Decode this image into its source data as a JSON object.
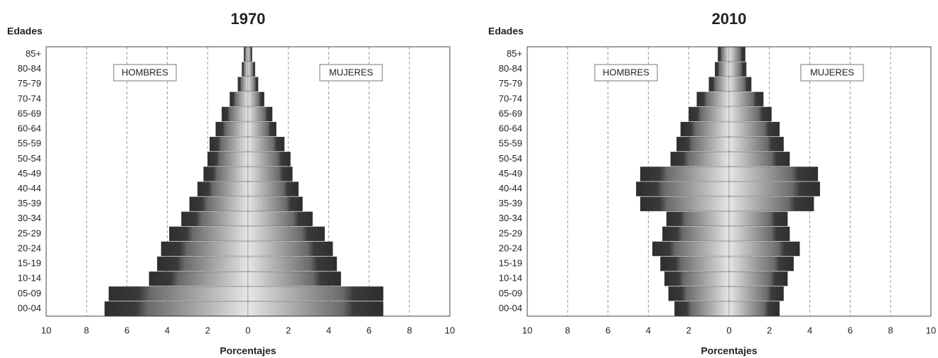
{
  "chart_data": [
    {
      "type": "pyramid",
      "title": "1970",
      "y_label": "Edades",
      "x_label": "Porcentajes",
      "categories": [
        "00-04",
        "05-09",
        "10-14",
        "15-19",
        "20-24",
        "25-29",
        "30-34",
        "35-39",
        "40-44",
        "45-49",
        "50-54",
        "55-59",
        "60-64",
        "65-69",
        "70-74",
        "75-79",
        "80-84",
        "85+"
      ],
      "series": [
        {
          "name": "HOMBRES",
          "color": "#333333",
          "values": [
            -7.1,
            -6.9,
            -4.9,
            -4.5,
            -4.3,
            -3.9,
            -3.3,
            -2.9,
            -2.5,
            -2.2,
            -2.0,
            -1.9,
            -1.6,
            -1.3,
            -0.9,
            -0.5,
            -0.3,
            -0.2
          ]
        },
        {
          "name": "MUJERES",
          "color": "#333333",
          "values": [
            6.7,
            6.7,
            4.6,
            4.4,
            4.2,
            3.8,
            3.2,
            2.7,
            2.5,
            2.2,
            2.1,
            1.8,
            1.4,
            1.2,
            0.8,
            0.5,
            0.35,
            0.2
          ]
        }
      ],
      "xlim": [
        -10,
        10
      ],
      "xticks": [
        {
          "value": -10,
          "label": "10"
        },
        {
          "value": -8,
          "label": "8"
        },
        {
          "value": -6,
          "label": "6"
        },
        {
          "value": -4,
          "label": "4"
        },
        {
          "value": -2,
          "label": "2"
        },
        0,
        2,
        4,
        6,
        8,
        10
      ],
      "grid": true
    },
    {
      "type": "pyramid",
      "title": "2010",
      "y_label": "Edades",
      "x_label": "Porcentajes",
      "categories": [
        "00-04",
        "05-09",
        "10-14",
        "15-19",
        "20-24",
        "25-29",
        "30-34",
        "35-39",
        "40-44",
        "45-49",
        "50-54",
        "55-59",
        "60-64",
        "65-69",
        "70-74",
        "75-79",
        "80-84",
        "85+"
      ],
      "series": [
        {
          "name": "HOMBRES",
          "color": "#333333",
          "values": [
            -2.7,
            -3.0,
            -3.2,
            -3.4,
            -3.8,
            -3.3,
            -3.1,
            -4.4,
            -4.6,
            -4.4,
            -2.9,
            -2.6,
            -2.4,
            -2.0,
            -1.6,
            -1.0,
            -0.7,
            -0.55
          ]
        },
        {
          "name": "MUJERES",
          "color": "#333333",
          "values": [
            2.5,
            2.7,
            2.9,
            3.2,
            3.5,
            3.0,
            2.9,
            4.2,
            4.5,
            4.4,
            3.0,
            2.7,
            2.5,
            2.1,
            1.7,
            1.1,
            0.85,
            0.8
          ]
        }
      ],
      "xlim": [
        -10,
        10
      ],
      "xticks": [
        {
          "value": -10,
          "label": "10"
        },
        {
          "value": -8,
          "label": "8"
        },
        {
          "value": -6,
          "label": "6"
        },
        {
          "value": -4,
          "label": "4"
        },
        {
          "value": -2,
          "label": "2"
        },
        0,
        2,
        4,
        6,
        8,
        10
      ],
      "grid": true
    }
  ]
}
